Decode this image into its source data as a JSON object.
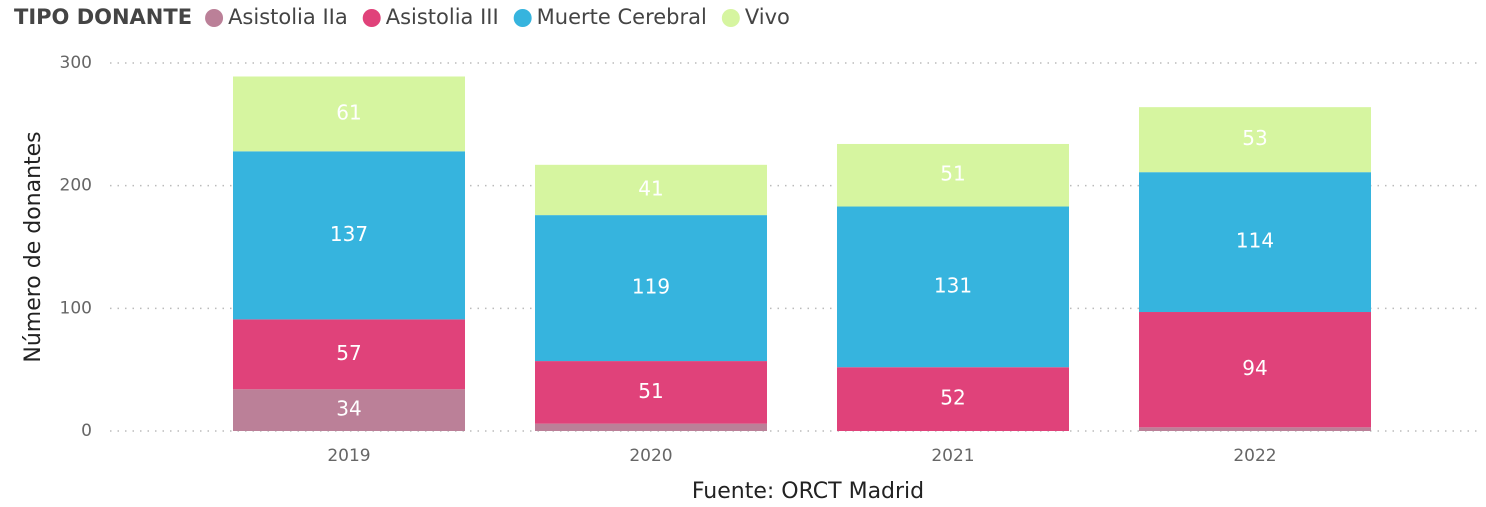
{
  "chart_data": {
    "type": "stacked_bar",
    "legend_title": "TIPO DONANTE",
    "ylabel": "Número de donantes",
    "xlabel": "Fuente: ORCT Madrid",
    "categories": [
      "2019",
      "2020",
      "2021",
      "2022"
    ],
    "series": [
      {
        "name": "Asistolia IIa",
        "color": "#bb8098",
        "values": [
          34,
          6,
          0,
          3
        ]
      },
      {
        "name": "Asistolia III",
        "color": "#e0427a",
        "values": [
          57,
          51,
          52,
          94
        ]
      },
      {
        "name": "Muerte Cerebral",
        "color": "#36b4de",
        "values": [
          137,
          119,
          131,
          114
        ]
      },
      {
        "name": "Vivo",
        "color": "#d6f5a0",
        "values": [
          61,
          41,
          51,
          53
        ]
      }
    ],
    "ylim": [
      0,
      300
    ],
    "yticks": [
      0,
      100,
      200,
      300
    ],
    "grid": true,
    "legend": "top-left"
  }
}
